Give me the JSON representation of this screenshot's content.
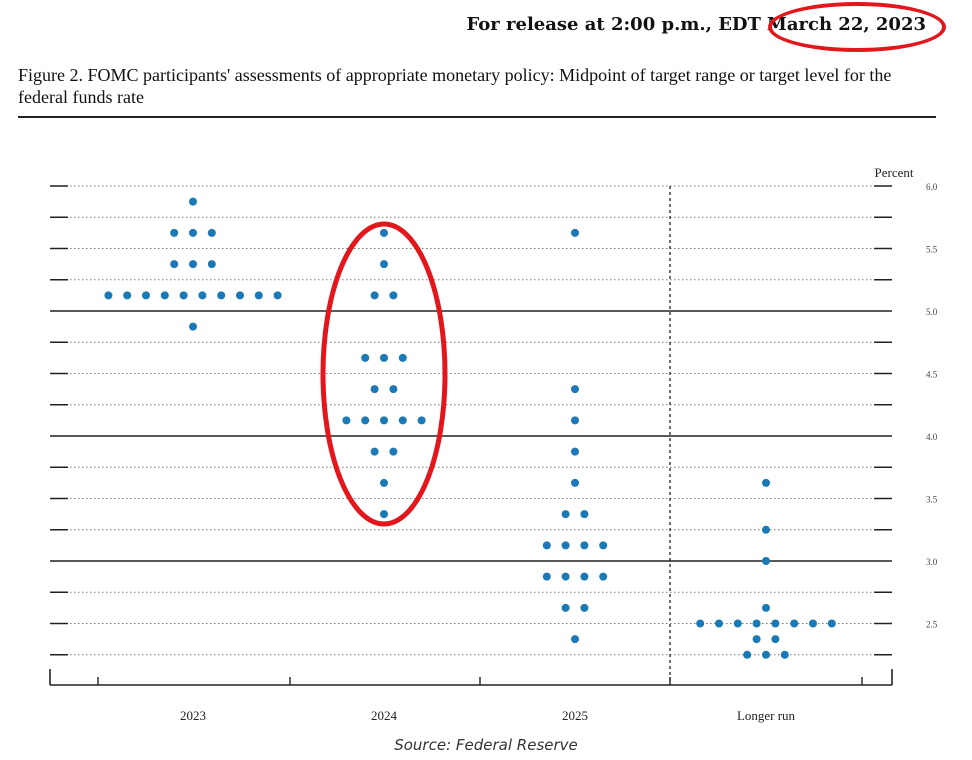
{
  "header": {
    "release_prefix": "For release at 2:00 p.m., EDT",
    "release_date": "March 22, 2023"
  },
  "figure": {
    "title": "Figure 2.  FOMC participants' assessments of appropriate monetary policy: Midpoint of target range or target level for the federal funds rate"
  },
  "source": "Source: Federal Reserve",
  "colors": {
    "dot": "#1b7ab5",
    "highlight": "#e3161b",
    "axis": "#222222",
    "grid": "#777777"
  },
  "chart_data": {
    "type": "scatter",
    "title": "",
    "ylabel": "Percent",
    "xlabel": "",
    "ylim": [
      2.0,
      6.0
    ],
    "yticks": [
      "6.0",
      "5.5",
      "5.0",
      "4.5",
      "4.0",
      "3.5",
      "3.0",
      "2.5"
    ],
    "categories": [
      "2023",
      "2024",
      "2025",
      "Longer run"
    ],
    "grid": true,
    "dots": [
      {
        "category": "2023",
        "points": [
          {
            "value": 5.875,
            "count": 1
          },
          {
            "value": 5.625,
            "count": 3
          },
          {
            "value": 5.375,
            "count": 3
          },
          {
            "value": 5.125,
            "count": 10
          },
          {
            "value": 4.875,
            "count": 1
          }
        ]
      },
      {
        "category": "2024",
        "points": [
          {
            "value": 5.625,
            "count": 1
          },
          {
            "value": 5.375,
            "count": 1
          },
          {
            "value": 5.125,
            "count": 2
          },
          {
            "value": 4.625,
            "count": 3
          },
          {
            "value": 4.375,
            "count": 2
          },
          {
            "value": 4.125,
            "count": 5
          },
          {
            "value": 3.875,
            "count": 2
          },
          {
            "value": 3.625,
            "count": 1
          },
          {
            "value": 3.375,
            "count": 1
          }
        ]
      },
      {
        "category": "2025",
        "points": [
          {
            "value": 5.625,
            "count": 1
          },
          {
            "value": 4.375,
            "count": 1
          },
          {
            "value": 4.125,
            "count": 1
          },
          {
            "value": 3.875,
            "count": 1
          },
          {
            "value": 3.625,
            "count": 1
          },
          {
            "value": 3.375,
            "count": 2
          },
          {
            "value": 3.125,
            "count": 4
          },
          {
            "value": 2.875,
            "count": 4
          },
          {
            "value": 2.625,
            "count": 2
          },
          {
            "value": 2.375,
            "count": 1
          }
        ]
      },
      {
        "category": "Longer run",
        "points": [
          {
            "value": 3.625,
            "count": 1
          },
          {
            "value": 3.25,
            "count": 1
          },
          {
            "value": 3.0,
            "count": 1
          },
          {
            "value": 2.625,
            "count": 1
          },
          {
            "value": 2.5,
            "count": 8
          },
          {
            "value": 2.375,
            "count": 2
          },
          {
            "value": 2.25,
            "count": 3
          }
        ]
      }
    ],
    "annotations": [
      {
        "type": "ellipse",
        "around": "2024 dots"
      },
      {
        "type": "ellipse",
        "around": "release date"
      }
    ]
  }
}
